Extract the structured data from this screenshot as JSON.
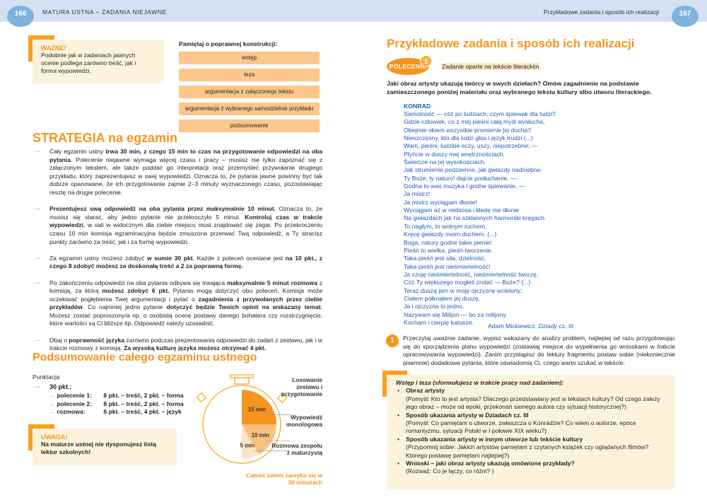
{
  "header": {
    "left_page": "166",
    "left_title": "MATURA USTNA – ZADANIA NIEJAWNE",
    "right_title": "Przykładowe zadania i sposób ich realizacji",
    "right_page": "167"
  },
  "colors": {
    "accent": "#f7941d",
    "band": "#d3e1f3",
    "page_bubble": "#7db3df",
    "callout_bg": "#fdf3dc",
    "chip": "#fdc68b",
    "poem": "#1c5db5"
  },
  "wazne": {
    "title": "WAŻNE!",
    "text": "Podobnie jak w zadaniach jawnych ocenie podlega zarówno treść, jak i forma wypowiedzi."
  },
  "construction": {
    "title": "Pamiętaj o poprawnej konstrukcji:",
    "items": [
      "wstęp",
      "teza",
      "argumentacja z załączonego tekstu",
      "argumentacja z wybranego samodzielnie przykładu",
      "podsumowanie"
    ]
  },
  "strategy": {
    "title": "STRATEGIA na egzamin",
    "bullets": [
      [
        {
          "t": "Cały egzamin ustny "
        },
        {
          "t": "trwa 30 min, z czego 15 min to czas na przygotowanie odpowiedzi na oba pytania",
          "b": 1
        },
        {
          "t": ". Polecenie niejawne wymaga więcej czasu i pracy – musisz nie tylko zapoznać się z załączonym tekstem, ale także poddać go interpretacji oraz przemyśleć przywołanie drugiego przykładu, który zaprezentujesz w swej wypowiedzi. Oznacza to, że pytania jawne powinny być tak dobrze opanowane, że ich przygotowanie zajmie 2–3 minuty wyznaczonego czasu, pozostawiając resztę na drugie polecenie."
        }
      ],
      [
        {
          "t": "Prezentujesz swą odpowiedź na oba pytania przez maksymalnie 10 minut.",
          "b": 1
        },
        {
          "t": " Oznacza to, że musisz się starać, aby jedno pytanie nie przekroczyło 5 minut. "
        },
        {
          "t": "Kontroluj czas w trakcie wypowiedzi",
          "b": 1
        },
        {
          "t": ", w sali w widocznym dla ciebie miejscu musi znajdować się zegar. Po przekroczeniu czasu 10 min komisja egzaminacyjna będzie zmuszona przerwać Twą odpowiedź, a Ty stracisz punkty zarówno za treść, jak i za formę wypowiedzi."
        }
      ],
      [
        {
          "t": "Za egzamin ustny możesz zdobyć "
        },
        {
          "t": "w sumie 30 pkt",
          "b": 1
        },
        {
          "t": ". Każde z poleceń oceniane jest "
        },
        {
          "t": "na 10 pkt., z czego 8 zdobyć możesz za doskonałą treść a 2 za poprawną formę.",
          "b": 1
        }
      ],
      [
        {
          "t": "Po zakończeniu odpowiedzi na oba pytania odbywa się trwająca "
        },
        {
          "t": "maksymalnie 5 minut rozmowa",
          "b": 1
        },
        {
          "t": " z komisją, za którą "
        },
        {
          "t": "możesz zdobyć 6 pkt.",
          "b": 1
        },
        {
          "t": " Pytania mogą dotyczyć obu poleceń. Komisja może oczekiwać pogłębienia Twej argumentacji i pytać o "
        },
        {
          "t": "zagadnienia z przywołanych przez ciebie przykładów",
          "b": 1
        },
        {
          "t": ". Co najmniej jedno pytanie "
        },
        {
          "t": "dotyczyć będzie Twoich opinii na wskazany temat",
          "b": 1
        },
        {
          "t": ". Możesz zostać poproszony/a np. o osobistą ocenę postawy danego bohatera czy rozstrzygnięcie, które wartości są Ci bliższe itp. Odpowiedź należy uzasadnić."
        }
      ],
      [
        {
          "t": "Dbaj o "
        },
        {
          "t": "poprawność języka",
          "b": 1
        },
        {
          "t": " zarówno podczas prezentowania odpowiedzi do zadań z zestawu, jak i w trakcie rozmowy z komisją. "
        },
        {
          "t": "Za wysoką kulturę języka możesz otrzymać 4 pkt.",
          "b": 1
        }
      ]
    ]
  },
  "summary": {
    "title": "Podsumowanie całego egzaminu ustnego",
    "scoring_label": "Punktacja:",
    "total": "30 pkt.:",
    "rows": [
      {
        "name": "polecenie 1:",
        "value": "8 pkt. – treść, 2 pkt. – forma"
      },
      {
        "name": "polecenie 2:",
        "value": "8 pkt. – treść, 2 pkt. – forma"
      },
      {
        "name": "rozmowa:",
        "value": "6 pkt. – treść, 4 pkt. – język"
      }
    ]
  },
  "uwaga": {
    "title": "UWAGA!",
    "text": "Na maturze ustnej nie dysponujesz listą lektur szkolnych!"
  },
  "stopwatch": {
    "segments": [
      {
        "minutes": 15,
        "label": "15 min",
        "desc": "Losowanie zestawu i przygotowanie",
        "color": "#f7941d"
      },
      {
        "minutes": 10,
        "label": "10 min",
        "desc": "Wypowiedź monologowa",
        "color": "#fbbf7e"
      },
      {
        "minutes": 5,
        "label": "5 min",
        "desc": "Rozmowa zespołu z maturzystą",
        "color": "#fde3c2"
      }
    ],
    "total_note": "Całość zatem zamyka się w 30 minutach"
  },
  "right": {
    "title": "Przykładowe zadania i sposób ich realizacji",
    "badge": "POLECENIE",
    "badge_num": "1",
    "task_type": "Zadanie oparte na tekście literackim",
    "question": "Jaki obraz artysty ukazują twórcy w swych dziełach? Omów zagadnienie na podstawie zamieszczonego poniżej materiału oraz wybranego tekstu kultury albo utworu literackiego.",
    "poem_title": "KONRAD",
    "poem": [
      "Samotność — cóż po ludziach, czym śpiewak dla ludzi?",
      "Gdzie człowiek, co z mej pieśni całą myśl wysłucha,",
      "Obejmie okiem wszystkie promienie jej ducha?",
      "Nieszczęsny, kto dla ludzi głos i język trudzi (...)",
      "Wam, pieśni, ludzkie oczy, uszy, niepotrzebne; —",
      "Płyńcie w duszy mej wnętrznościach,",
      "Świećcie na jej wysokościach,",
      "Jak strumienie podziemne, jak gwiazdy nadniebne.",
      "Ty Boże, ty naturo! dajcie posłuchanie. —",
      "Godna to was muzyka i godne śpiewanie. —",
      "Ja mistrz!",
      "Ja mistrz wyciągam dłonie!",
      "Wyciągam aż w niebiosa i kładę me dłonie",
      "Na gwiazdach jak na szklannych harmoniki kręgach.",
      "To nagłym, to wolnym ruchem,",
      "Kręcę gwiazdy moim duchem. (...)",
      "Boga, natury godne takie pienie!",
      "Pieśń to wielka, pieśń-tworzenie.",
      "Taka pieśń jest siła, dzielność,",
      "Taka pieśń jest nieśmiertelność!",
      "Ja czuję nieśmiertelność, nieśmiertelność tworzę,",
      "Cóż Ty większego mogłeś zrobić — Boże? (...)",
      "Teraz duszą jam w moję ojczyznę wcielony;",
      "Ciałem połknąłem jej duszę,",
      "Ja i ojczyzna to jedno.",
      "Nazywam się Milijon — bo za milijony",
      "Kocham i cierpię katusze."
    ],
    "source_author": "Adam Mickiewicz: ",
    "source_work": "Dziady",
    "source_part": " cz. III",
    "step_num": "1",
    "step_text": "Przeczytaj uważnie zadanie, wypisz wskazany do analizy problem, najlepiej od razu przygotowując się do sporządzenia planu wypowiedzi (zostawiaj miejsce do wypełnienia go wnioskami w trakcie opracowywania wypowiedzi). Zanim przystąpisz do lektury fragmentu postaw sobie (niekoniecznie pisemnie) dodatkowe pytania, które uświadomią Ci, czego warto szukać w tekście:",
    "box_title": "Wstęp i teza (sformułujesz w trakcie pracy nad zadaniem):",
    "box_items": [
      {
        "head": [
          {
            "t": "Obraz artysty",
            "b": 1
          }
        ],
        "text": "(Pomyśl: Kto to jest artysta? Dlaczego przedstawiany jest w tekstach kultury? Od czego zależy jego obraz – może od epoki, przekonań samego autora czy sytuacji historycznej?)"
      },
      {
        "head": [
          {
            "t": "Sposób ukazania artysty w ",
            "b": 1
          },
          {
            "t": "Dziadach",
            "b": 1,
            "i": 1
          },
          {
            "t": " cz. III",
            "b": 1
          }
        ],
        "text": "(Pomyśl: Co pamiętam o utworze, zwłaszcza o Konradzie? Co wiem o autorze, epoce romantyzmu, sytuacji Polski w I połowie XIX wieku?)"
      },
      {
        "head": [
          {
            "t": "Sposób ukazania artysty w innym utworze lub tekście kultury",
            "b": 1
          }
        ],
        "text": "(Przypomnij sobie: Jakich artystów pamiętam z czytanych książek czy oglądanych filmów? Którego postawę pamiętam najlepiej?)"
      },
      {
        "head": [
          {
            "t": "Wnioski – jaki obraz artysty ukazują omówione przykłady?",
            "b": 1
          }
        ],
        "text": "(Rozważ: Co je łączy, co różni? )"
      }
    ]
  }
}
